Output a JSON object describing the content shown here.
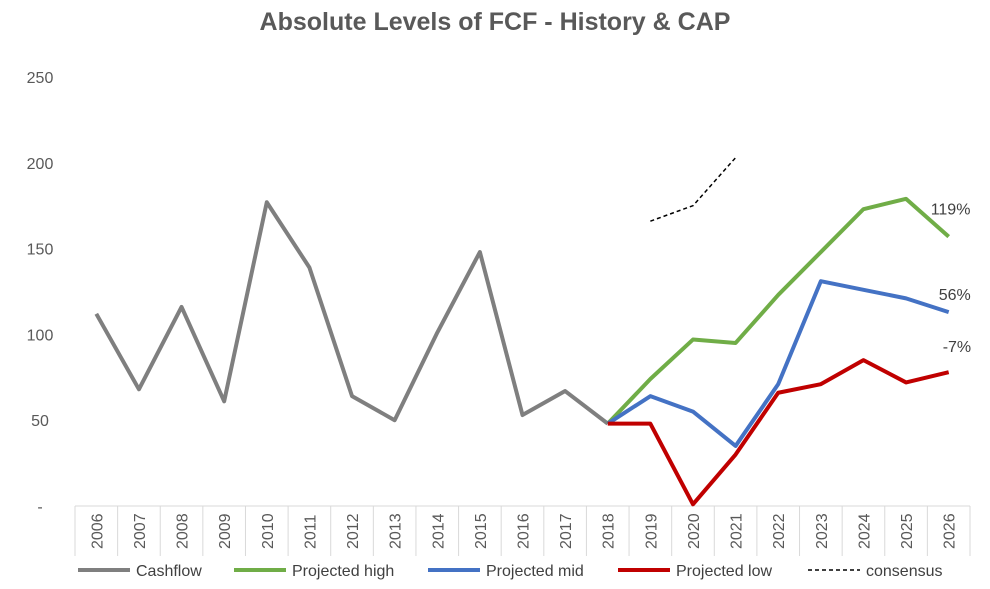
{
  "chart_data": {
    "type": "line",
    "title": "Absolute Levels of FCF - History & CAP",
    "categories": [
      "2006",
      "2007",
      "2008",
      "2009",
      "2010",
      "2011",
      "2012",
      "2013",
      "2014",
      "2015",
      "2016",
      "2017",
      "2018",
      "2019",
      "2020",
      "2021",
      "2022",
      "2023",
      "2024",
      "2025",
      "2026"
    ],
    "y_tick_labels": [
      "-",
      "50",
      "100",
      "150",
      "200",
      "250"
    ],
    "ylim": [
      0,
      250
    ],
    "grid": false,
    "legend_position": "bottom",
    "series": [
      {
        "name": "Cashflow",
        "color": "#7f7f7f",
        "dash": false,
        "values": [
          112,
          68,
          116,
          61,
          177,
          139,
          64,
          50,
          101,
          148,
          53,
          67,
          48,
          null,
          null,
          null,
          null,
          null,
          null,
          null,
          null
        ]
      },
      {
        "name": "Projected high",
        "color": "#70ad47",
        "dash": false,
        "values": [
          null,
          null,
          null,
          null,
          null,
          null,
          null,
          null,
          null,
          null,
          null,
          null,
          48,
          74,
          97,
          95,
          123,
          148,
          173,
          179,
          157
        ]
      },
      {
        "name": "Projected mid",
        "color": "#4472c4",
        "dash": false,
        "values": [
          null,
          null,
          null,
          null,
          null,
          null,
          null,
          null,
          null,
          null,
          null,
          null,
          48,
          64,
          55,
          35,
          71,
          131,
          126,
          121,
          113
        ]
      },
      {
        "name": "Projected low",
        "color": "#c00000",
        "dash": false,
        "values": [
          null,
          null,
          null,
          null,
          null,
          null,
          null,
          null,
          null,
          null,
          null,
          null,
          48,
          48,
          1,
          30,
          66,
          71,
          85,
          72,
          78
        ]
      },
      {
        "name": "consensus",
        "color": "#000000",
        "dash": true,
        "values": [
          null,
          null,
          null,
          null,
          null,
          null,
          null,
          null,
          null,
          null,
          null,
          null,
          null,
          166,
          175,
          203,
          null,
          null,
          null,
          null,
          null
        ]
      }
    ],
    "annotations": [
      {
        "text": "119%",
        "series": "Projected high",
        "category": "2026"
      },
      {
        "text": "56%",
        "series": "Projected mid",
        "category": "2026"
      },
      {
        "text": "-7%",
        "series": "Projected low",
        "category": "2026"
      }
    ]
  }
}
